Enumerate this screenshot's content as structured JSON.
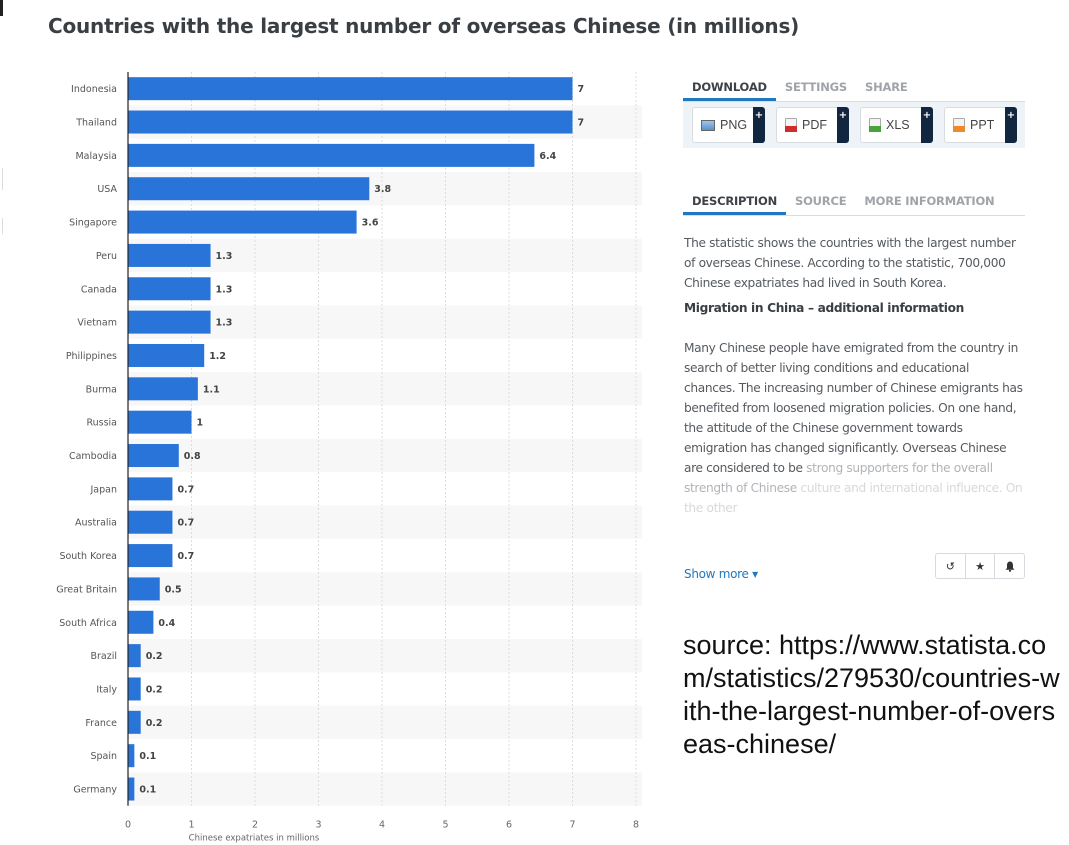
{
  "page_title": "Countries with the largest number of overseas Chinese (in millions)",
  "chart_data": {
    "type": "bar",
    "orientation": "horizontal",
    "title": "Countries with the largest number of overseas Chinese (in millions)",
    "xlabel": "Chinese expatriates in millions",
    "ylabel": "",
    "xlim": [
      0,
      8
    ],
    "x_ticks": [
      "0",
      "1",
      "2",
      "3",
      "4",
      "5",
      "6",
      "7",
      "8"
    ],
    "grid": true,
    "bar_color": "#2874d8",
    "categories": [
      "Indonesia",
      "Thailand",
      "Malaysia",
      "USA",
      "Singapore",
      "Peru",
      "Canada",
      "Vietnam",
      "Philippines",
      "Burma",
      "Russia",
      "Cambodia",
      "Japan",
      "Australia",
      "South Korea",
      "Great Britain",
      "South Africa",
      "Brazil",
      "Italy",
      "France",
      "Spain",
      "Germany"
    ],
    "values": [
      7,
      7,
      6.4,
      3.8,
      3.6,
      1.3,
      1.3,
      1.3,
      1.2,
      1.1,
      1,
      0.8,
      0.7,
      0.7,
      0.7,
      0.5,
      0.4,
      0.2,
      0.2,
      0.2,
      0.1,
      0.1
    ],
    "value_labels": [
      "7",
      "7",
      "6.4",
      "3.8",
      "3.6",
      "1.3",
      "1.3",
      "1.3",
      "1.2",
      "1.1",
      "1",
      "0.8",
      "0.7",
      "0.7",
      "0.7",
      "0.5",
      "0.4",
      "0.2",
      "0.2",
      "0.2",
      "0.1",
      "0.1"
    ]
  },
  "download": {
    "tabs": [
      {
        "label": "DOWNLOAD",
        "active": true
      },
      {
        "label": "SETTINGS",
        "active": false
      },
      {
        "label": "SHARE",
        "active": false
      }
    ],
    "buttons": [
      {
        "label": "PNG",
        "icon": "png-file-icon"
      },
      {
        "label": "PDF",
        "icon": "pdf-file-icon"
      },
      {
        "label": "XLS",
        "icon": "xls-file-icon"
      },
      {
        "label": "PPT",
        "icon": "ppt-file-icon"
      }
    ],
    "plus_glyph": "+"
  },
  "description": {
    "tabs": [
      {
        "label": "DESCRIPTION",
        "active": true
      },
      {
        "label": "SOURCE",
        "active": false
      },
      {
        "label": "MORE INFORMATION",
        "active": false
      }
    ],
    "intro": "The statistic shows the countries with the largest number of overseas Chinese. According to the statistic, 700,000 Chinese expatriates had lived in South Korea.",
    "heading": "Migration in China – additional information",
    "body": "Many Chinese people have emigrated from the country in search of better living conditions and educational chances. The increasing number of Chinese emigrants has benefited from loosened migration policies. On one hand, the attitude of the Chinese government towards emigration has changed significantly. Overseas Chinese are considered to be",
    "body_fade_1": "strong supporters for the overall strength of Chinese",
    "body_fade_2": "culture and international influence. On the other",
    "show_more": "Show more ▾"
  },
  "action_icons": {
    "history": "↺",
    "favorite": "★",
    "notify": "🔔"
  },
  "source_note": "source: https://www.statista.com/statistics/279530/countries-with-the-largest-number-of-overseas-chinese/"
}
